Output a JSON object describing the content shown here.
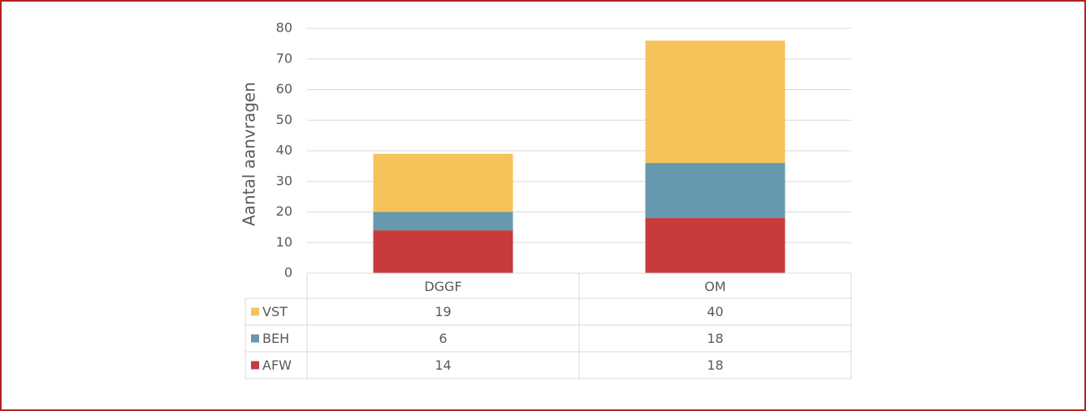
{
  "chart_data": {
    "type": "bar",
    "stacked": true,
    "y_label": "Aantal aanvragen",
    "categories": [
      "DGGF",
      "OM"
    ],
    "series": [
      {
        "name": "VST",
        "color": "#f5c35a",
        "values": [
          19,
          40
        ]
      },
      {
        "name": "BEH",
        "color": "#6698b0",
        "values": [
          6,
          18
        ]
      },
      {
        "name": "AFW",
        "color": "#c83b3b",
        "values": [
          14,
          18
        ]
      }
    ],
    "ylim": [
      0,
      80
    ],
    "yticks": [
      0,
      10,
      20,
      30,
      40,
      50,
      60,
      70,
      80
    ],
    "grid": true,
    "data_table": true
  }
}
